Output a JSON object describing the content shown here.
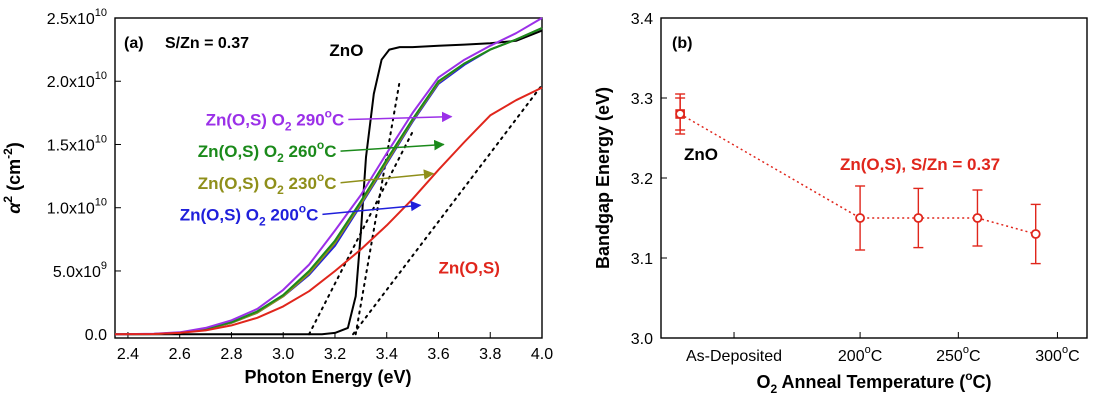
{
  "chart_data": [
    {
      "type": "line",
      "panel_label": "(a)",
      "annotation": "S/Zn = 0.37",
      "xlabel": "Photon Energy (eV)",
      "ylabel_symbol": "α",
      "ylabel_sup": "2",
      "ylabel_unit_a": " (cm",
      "ylabel_unit_b": ")",
      "ylabel_unit_sup": "-2",
      "xlim": [
        2.35,
        4.0
      ],
      "ylim": [
        -300000000.0,
        25000000000.0
      ],
      "x_ticks": [
        "2.4",
        "2.6",
        "2.8",
        "3.0",
        "3.2",
        "3.4",
        "3.6",
        "3.8",
        "4.0"
      ],
      "y_ticks": [
        {
          "value": 0,
          "mantissa": "0.0",
          "exp": ""
        },
        {
          "value": 5000000000.0,
          "mantissa": "5.0x10",
          "exp": "9"
        },
        {
          "value": 10000000000.0,
          "mantissa": "1.0x10",
          "exp": "10"
        },
        {
          "value": 15000000000.0,
          "mantissa": "1.5x10",
          "exp": "10"
        },
        {
          "value": 20000000000.0,
          "mantissa": "2.0x10",
          "exp": "10"
        },
        {
          "value": 25000000000.0,
          "mantissa": "2.5x10",
          "exp": "10"
        }
      ],
      "series": [
        {
          "name": "ZnO",
          "color": "#000000",
          "x": [
            2.35,
            3.15,
            3.2,
            3.25,
            3.28,
            3.3,
            3.32,
            3.35,
            3.38,
            3.41,
            3.45,
            3.5,
            3.6,
            3.7,
            3.8,
            3.9,
            3.95,
            4.0
          ],
          "y": [
            0,
            0,
            100000000.0,
            500000000.0,
            3000000000.0,
            8000000000.0,
            14000000000.0,
            19000000000.0,
            21700000000.0,
            22500000000.0,
            22700000000.0,
            22700000000.0,
            22800000000.0,
            22900000000.0,
            23000000000.0,
            23200000000.0,
            23600000000.0,
            24000000000.0
          ]
        },
        {
          "name": "Zn(O,S) O2 200°C",
          "color": "#1f1fdb",
          "x": [
            2.35,
            2.5,
            2.6,
            2.7,
            2.8,
            2.9,
            3.0,
            3.1,
            3.2,
            3.3,
            3.4,
            3.5,
            3.6,
            3.7,
            3.8,
            3.9,
            4.0
          ],
          "y": [
            0,
            20000000.0,
            120000000.0,
            400000000.0,
            900000000.0,
            1700000000.0,
            3000000000.0,
            4700000000.0,
            7000000000.0,
            10200000000.0,
            13500000000.0,
            16800000000.0,
            19800000000.0,
            21300000000.0,
            22500000000.0,
            23300000000.0,
            24200000000.0
          ]
        },
        {
          "name": "Zn(O,S) O2 230°C",
          "color": "#8f8f1a",
          "x": [
            2.35,
            2.5,
            2.6,
            2.7,
            2.8,
            2.9,
            3.0,
            3.1,
            3.2,
            3.3,
            3.4,
            3.5,
            3.6,
            3.7,
            3.8,
            3.9,
            4.0
          ],
          "y": [
            0,
            20000000.0,
            120000000.0,
            400000000.0,
            900000000.0,
            1700000000.0,
            3000000000.0,
            4800000000.0,
            7200000000.0,
            10300000000.0,
            13600000000.0,
            16900000000.0,
            19900000000.0,
            21400000000.0,
            22500000000.0,
            23300000000.0,
            24200000000.0
          ]
        },
        {
          "name": "Zn(O,S) O2 260°C",
          "color": "#1b8a1b",
          "x": [
            2.35,
            2.5,
            2.6,
            2.7,
            2.8,
            2.9,
            3.0,
            3.1,
            3.2,
            3.3,
            3.4,
            3.5,
            3.6,
            3.7,
            3.8,
            3.9,
            4.0
          ],
          "y": [
            0,
            20000000.0,
            130000000.0,
            420000000.0,
            950000000.0,
            1800000000.0,
            3100000000.0,
            5000000000.0,
            7400000000.0,
            10500000000.0,
            13800000000.0,
            17000000000.0,
            20000000000.0,
            21400000000.0,
            22500000000.0,
            23300000000.0,
            24200000000.0
          ]
        },
        {
          "name": "Zn(O,S) O2 290°C",
          "color": "#9b30e8",
          "x": [
            2.35,
            2.5,
            2.6,
            2.7,
            2.8,
            2.9,
            3.0,
            3.1,
            3.2,
            3.3,
            3.4,
            3.5,
            3.6,
            3.7,
            3.8,
            3.9,
            4.0
          ],
          "y": [
            0,
            30000000.0,
            150000000.0,
            500000000.0,
            1100000000.0,
            2000000000.0,
            3500000000.0,
            5500000000.0,
            8200000000.0,
            11000000000.0,
            14300000000.0,
            17500000000.0,
            20300000000.0,
            21700000000.0,
            22800000000.0,
            23800000000.0,
            25000000000.0
          ]
        },
        {
          "name": "Zn(O,S)",
          "color": "#e0261c",
          "x": [
            2.35,
            2.5,
            2.6,
            2.7,
            2.8,
            2.9,
            3.0,
            3.1,
            3.2,
            3.3,
            3.4,
            3.5,
            3.6,
            3.7,
            3.8,
            3.9,
            4.0
          ],
          "y": [
            0,
            20000000.0,
            100000000.0,
            300000000.0,
            700000000.0,
            1300000000.0,
            2200000000.0,
            3400000000.0,
            5000000000.0,
            6700000000.0,
            8600000000.0,
            10700000000.0,
            13000000000.0,
            15200000000.0,
            17300000000.0,
            18500000000.0,
            19500000000.0
          ]
        }
      ],
      "fit_lines": [
        {
          "x": [
            3.1,
            3.5
          ],
          "y": [
            0,
            16000000000.0
          ]
        },
        {
          "x": [
            3.27,
            4.0
          ],
          "y": [
            0,
            19700000000.0
          ]
        },
        {
          "x": [
            3.28,
            3.45
          ],
          "y": [
            0,
            20000000000.0
          ]
        }
      ],
      "labels": [
        {
          "text": "ZnO",
          "color": "#000000",
          "at": [
            3.31,
            22000000000.0
          ],
          "anchor": "end"
        },
        {
          "text_main": "Zn(O,S) O",
          "sub": "2",
          "temp": " 290",
          "deg": "o",
          "unit": "C",
          "color": "#9b30e8",
          "at": [
            2.7,
            16500000000.0
          ],
          "arrow_to": [
            3.65,
            17200000000.0
          ]
        },
        {
          "text_main": "Zn(O,S) O",
          "sub": "2",
          "temp": " 260",
          "deg": "o",
          "unit": "C",
          "color": "#1b8a1b",
          "at": [
            2.67,
            14000000000.0
          ],
          "arrow_to": [
            3.62,
            15000000000.0
          ]
        },
        {
          "text_main": "Zn(O,S) O",
          "sub": "2",
          "temp": " 230",
          "deg": "o",
          "unit": "C",
          "color": "#8f8f1a",
          "at": [
            2.67,
            11500000000.0
          ],
          "arrow_to": [
            3.58,
            12700000000.0
          ]
        },
        {
          "text_main": "Zn(O,S) O",
          "sub": "2",
          "temp": " 200",
          "deg": "o",
          "unit": "C",
          "color": "#1f1fdb",
          "at": [
            2.6,
            9000000000.0
          ],
          "arrow_to": [
            3.53,
            10200000000.0
          ]
        },
        {
          "text": "Zn(O,S)",
          "color": "#e0261c",
          "at": [
            3.6,
            4800000000.0
          ],
          "anchor": "start"
        }
      ]
    },
    {
      "type": "scatter",
      "panel_label": "(b)",
      "xlabel_a": "O",
      "xlabel_sub": "2",
      "xlabel_b": " Anneal Temperature (",
      "xlabel_sup": "o",
      "xlabel_c": "C)",
      "ylabel": "Bandgap Energy (eV)",
      "xlim": [
        0,
        4.9
      ],
      "ylim": [
        3.0,
        3.4
      ],
      "y_ticks": [
        "3.0",
        "3.1",
        "3.2",
        "3.3",
        "3.4"
      ],
      "x_ticks": [
        {
          "pos": 0.84,
          "text": "As-Deposited",
          "deg": "",
          "unit": ""
        },
        {
          "pos": 2.29,
          "text": "200",
          "deg": "o",
          "unit": "C"
        },
        {
          "pos": 3.42,
          "text": "250",
          "deg": "o",
          "unit": "C"
        },
        {
          "pos": 4.56,
          "text": "300",
          "deg": "o",
          "unit": "C"
        }
      ],
      "zno_point": {
        "label": "ZnO",
        "x": 0.22,
        "y": 3.28,
        "err": 0.025,
        "color": "#e0261c"
      },
      "series": {
        "name": "Zn(O,S), S/Zn = 0.37",
        "color": "#e0261c",
        "x": [
          0.22,
          2.29,
          2.96,
          3.64,
          4.31
        ],
        "y": [
          3.28,
          3.15,
          3.15,
          3.15,
          3.13
        ],
        "err": [
          0.02,
          0.04,
          0.037,
          0.035,
          0.037
        ]
      }
    }
  ]
}
